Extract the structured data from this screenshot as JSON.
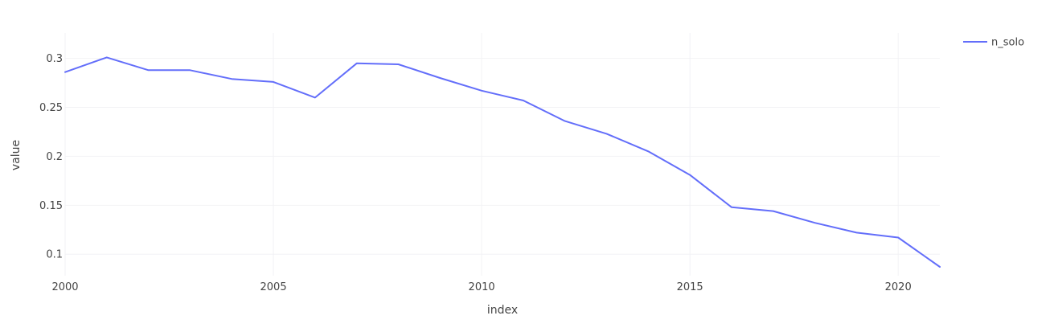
{
  "chart_data": {
    "type": "line",
    "title": "",
    "xlabel": "index",
    "ylabel": "value",
    "xlim": [
      2000,
      2021
    ],
    "ylim": [
      0.078,
      0.326
    ],
    "xticks": [
      {
        "value": 2000,
        "label": "2000"
      },
      {
        "value": 2005,
        "label": "2005"
      },
      {
        "value": 2010,
        "label": "2010"
      },
      {
        "value": 2015,
        "label": "2015"
      },
      {
        "value": 2020,
        "label": "2020"
      }
    ],
    "yticks": [
      {
        "value": 0.1,
        "label": "0.1"
      },
      {
        "value": 0.15,
        "label": "0.15"
      },
      {
        "value": 0.2,
        "label": "0.2"
      },
      {
        "value": 0.25,
        "label": "0.25"
      },
      {
        "value": 0.3,
        "label": "0.3"
      }
    ],
    "grid": true,
    "legend_position": "top-right",
    "x": [
      2000,
      2001,
      2002,
      2003,
      2004,
      2005,
      2006,
      2007,
      2008,
      2009,
      2010,
      2011,
      2012,
      2013,
      2014,
      2015,
      2016,
      2017,
      2018,
      2019,
      2020,
      2021
    ],
    "series": [
      {
        "name": "n_solo",
        "color": "#636efa",
        "values": [
          0.286,
          0.301,
          0.288,
          0.288,
          0.279,
          0.276,
          0.26,
          0.295,
          0.294,
          0.28,
          0.267,
          0.257,
          0.236,
          0.223,
          0.205,
          0.181,
          0.148,
          0.144,
          0.132,
          0.122,
          0.117,
          0.087
        ]
      }
    ]
  }
}
